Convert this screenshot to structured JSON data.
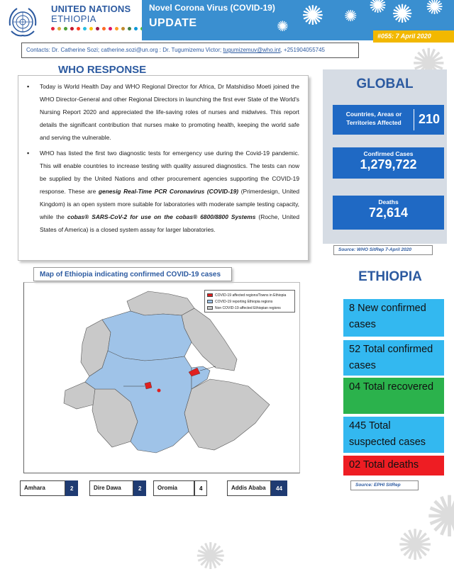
{
  "header": {
    "org_title": "UNITED NATIONS",
    "org_subtitle": "ETHIOPIA",
    "banner_title": "Novel Corona Virus (COVID-19)",
    "banner_update": "UPDATE",
    "issue": "#055: 7 April 2020",
    "sdg_colors": [
      "#e5243b",
      "#dda63a",
      "#4c9f38",
      "#c5192d",
      "#ff3a21",
      "#26bde2",
      "#fcc30b",
      "#a21942",
      "#fd6925",
      "#dd1367",
      "#fd9d24",
      "#bf8b2e",
      "#3f7e44",
      "#0a97d9",
      "#56c02b"
    ]
  },
  "contacts": {
    "prefix": "Contacts: Dr. Catherine Sozi; catherine.sozi@un.org : Dr. Tugumizemu Victor; ",
    "email": "tugumizemuv@who.int",
    "suffix": ", +251904055745"
  },
  "who_response": {
    "heading": "WHO RESPONSE",
    "bullet1": "Today is World Health Day and WHO Regional Director for Africa, Dr Matshidiso Moeti joined the WHO Director-General and other Regional Directors in launching the first ever State of the World's Nursing Report 2020 and appreciated the life-saving roles of nurses and midwives. This report details the significant contribution that nurses make to promoting health, keeping the world safe and serving the vulnerable.",
    "bullet2_a": "WHO has listed the first two diagnostic tests for emergency use during the Covid-19 pandemic. This will enable countries to increase testing with quality assured diagnostics. The tests can now be supplied by the United Nations and other procurement agencies supporting the COVID-19 response. These are ",
    "bullet2_b": "genesig Real-Time PCR Coronavirus (COVID-19)",
    "bullet2_c": " (Primerdesign, United Kingdom) is an open system more suitable for laboratories with moderate sample testing capacity, while the ",
    "bullet2_d": "cobas® SARS-CoV-2 for use on the cobas® 6800/8800 Systems",
    "bullet2_e": " (Roche, United States of America) is a closed system assay for larger laboratories."
  },
  "global": {
    "title": "GLOBAL",
    "countries_label": "Countries, Areas or Territories Affected",
    "countries_value": "210",
    "confirmed_label": "Confirmed Cases",
    "confirmed_value": "1,279,722",
    "deaths_label": "Deaths",
    "deaths_value": "72,614",
    "source": "Source: WHO SitRep 7-April 2020"
  },
  "ethiopia": {
    "title": "ETHIOPIA",
    "new_cases": "8 New confirmed cases",
    "total_confirmed": "52 Total confirmed cases",
    "recovered": "04 Total recovered",
    "suspected": "445 Total suspected cases",
    "deaths": "02 Total deaths",
    "source": "Source: EPHI SitRep"
  },
  "map": {
    "caption": "Map of Ethiopia indicating confirmed COVID-19 cases",
    "legend": [
      {
        "label": "COVID-19 affected regions/Towns in Ethiopia",
        "color": "#e02020"
      },
      {
        "label": "COVID-19 reporting Ethiopia regions",
        "color": "#9fc3e8"
      },
      {
        "label": "Non COVID-19 affected Ethiopian regions",
        "color": "#c9c9c9"
      }
    ]
  },
  "regions": [
    {
      "name": "Amhara",
      "value": "2"
    },
    {
      "name": "Dire Dawa",
      "value": "2"
    },
    {
      "name": "Oromia",
      "value": "4"
    },
    {
      "name": "Addis Ababa",
      "value": "44"
    }
  ]
}
